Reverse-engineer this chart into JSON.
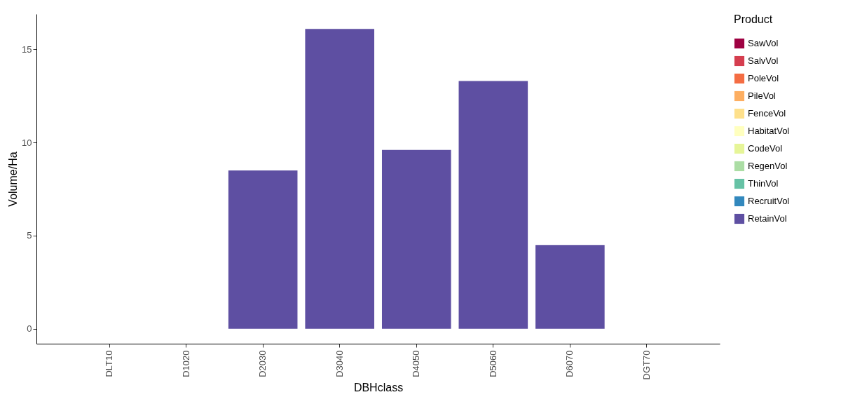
{
  "chart_data": {
    "type": "bar",
    "xlabel": "DBHclass",
    "ylabel": "Volume/Ha",
    "legend_title": "Product",
    "legend": "right",
    "grid": false,
    "categories": [
      "DLT10",
      "D1020",
      "D2030",
      "D3040",
      "D4050",
      "D5060",
      "D6070",
      "DGT70"
    ],
    "ylim": [
      -0.8,
      16.9
    ],
    "yticks": [
      0,
      5,
      10,
      15
    ],
    "series": [
      {
        "name": "SawVol",
        "color": "#9e0142",
        "values": [
          null,
          null,
          null,
          null,
          null,
          null,
          null,
          null
        ]
      },
      {
        "name": "SalvVol",
        "color": "#d53e4f",
        "values": [
          null,
          null,
          null,
          null,
          null,
          null,
          null,
          null
        ]
      },
      {
        "name": "PoleVol",
        "color": "#f46d43",
        "values": [
          null,
          null,
          null,
          null,
          null,
          null,
          null,
          null
        ]
      },
      {
        "name": "PileVol",
        "color": "#fdae61",
        "values": [
          null,
          null,
          null,
          null,
          null,
          null,
          null,
          null
        ]
      },
      {
        "name": "FenceVol",
        "color": "#fee08b",
        "values": [
          null,
          null,
          null,
          null,
          null,
          null,
          null,
          null
        ]
      },
      {
        "name": "HabitatVol",
        "color": "#ffffbf",
        "values": [
          null,
          null,
          null,
          null,
          null,
          null,
          null,
          null
        ]
      },
      {
        "name": "CodeVol",
        "color": "#e6f598",
        "values": [
          null,
          null,
          null,
          null,
          null,
          null,
          null,
          null
        ]
      },
      {
        "name": "RegenVol",
        "color": "#abdda4",
        "values": [
          null,
          null,
          null,
          null,
          null,
          null,
          null,
          null
        ]
      },
      {
        "name": "ThinVol",
        "color": "#66c2a5",
        "values": [
          null,
          null,
          null,
          null,
          null,
          null,
          null,
          null
        ]
      },
      {
        "name": "RecruitVol",
        "color": "#3288bd",
        "values": [
          null,
          null,
          null,
          null,
          null,
          null,
          null,
          null
        ]
      },
      {
        "name": "RetainVol",
        "color": "#5e4fa2",
        "values": [
          null,
          null,
          8.5,
          16.1,
          9.6,
          13.3,
          4.5,
          null
        ]
      }
    ]
  }
}
